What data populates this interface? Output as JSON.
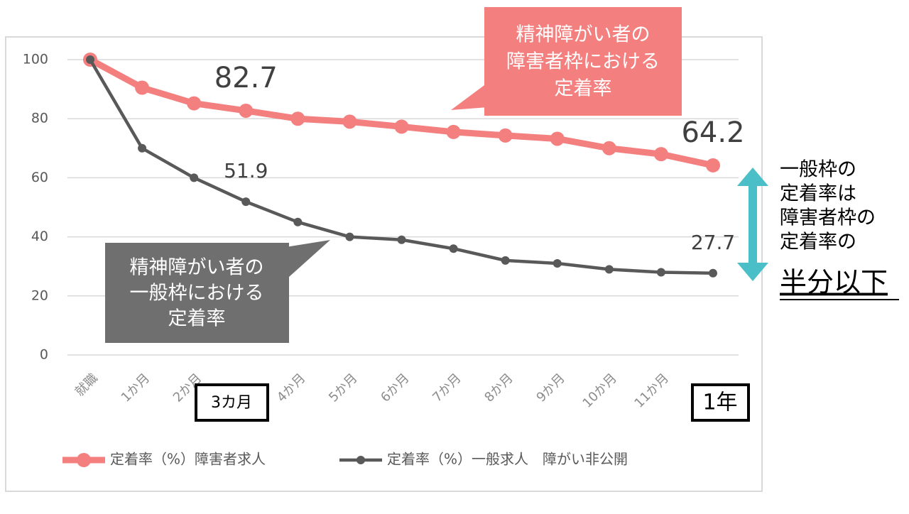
{
  "chart_data": {
    "type": "line",
    "categories": [
      "就職",
      "1か月",
      "2か月",
      null,
      "4か月",
      "5か月",
      "6か月",
      "7か月",
      "8か月",
      "9か月",
      "10か月",
      "11か月",
      null
    ],
    "series": [
      {
        "name": "定着率（%）障害者求人",
        "color": "#f47f7f",
        "values": [
          100,
          90.5,
          85.2,
          82.7,
          80,
          79,
          77.3,
          75.5,
          74.3,
          73.2,
          70,
          68,
          64.2
        ],
        "value_labels": [
          null,
          null,
          null,
          "82.7",
          null,
          null,
          null,
          null,
          null,
          null,
          null,
          null,
          "64.2"
        ]
      },
      {
        "name": "定着率（%）一般求人　障がい非公開",
        "color": "#595959",
        "values": [
          100,
          70,
          60,
          51.9,
          45,
          40,
          39,
          36,
          32,
          31,
          29,
          28,
          27.7
        ],
        "value_labels": [
          null,
          null,
          null,
          "51.9",
          null,
          null,
          null,
          null,
          null,
          null,
          null,
          null,
          "27.7"
        ]
      }
    ],
    "ylim": [
      0,
      100
    ],
    "yticks": [
      0,
      20,
      40,
      60,
      80,
      100
    ],
    "grid": true,
    "legend": "bottom",
    "annotations": {
      "pink_callout": [
        "精神障がい者の",
        "障害者枠における",
        "定着率"
      ],
      "gray_callout": [
        "精神障がい者の",
        "一般枠における",
        "定着率"
      ],
      "side_note": [
        "一般枠の",
        "定着率は",
        "障害者枠の",
        "定着率の"
      ],
      "side_emphasis": "半分以下",
      "box_3m": "3カ月",
      "box_1y": "1年"
    }
  }
}
